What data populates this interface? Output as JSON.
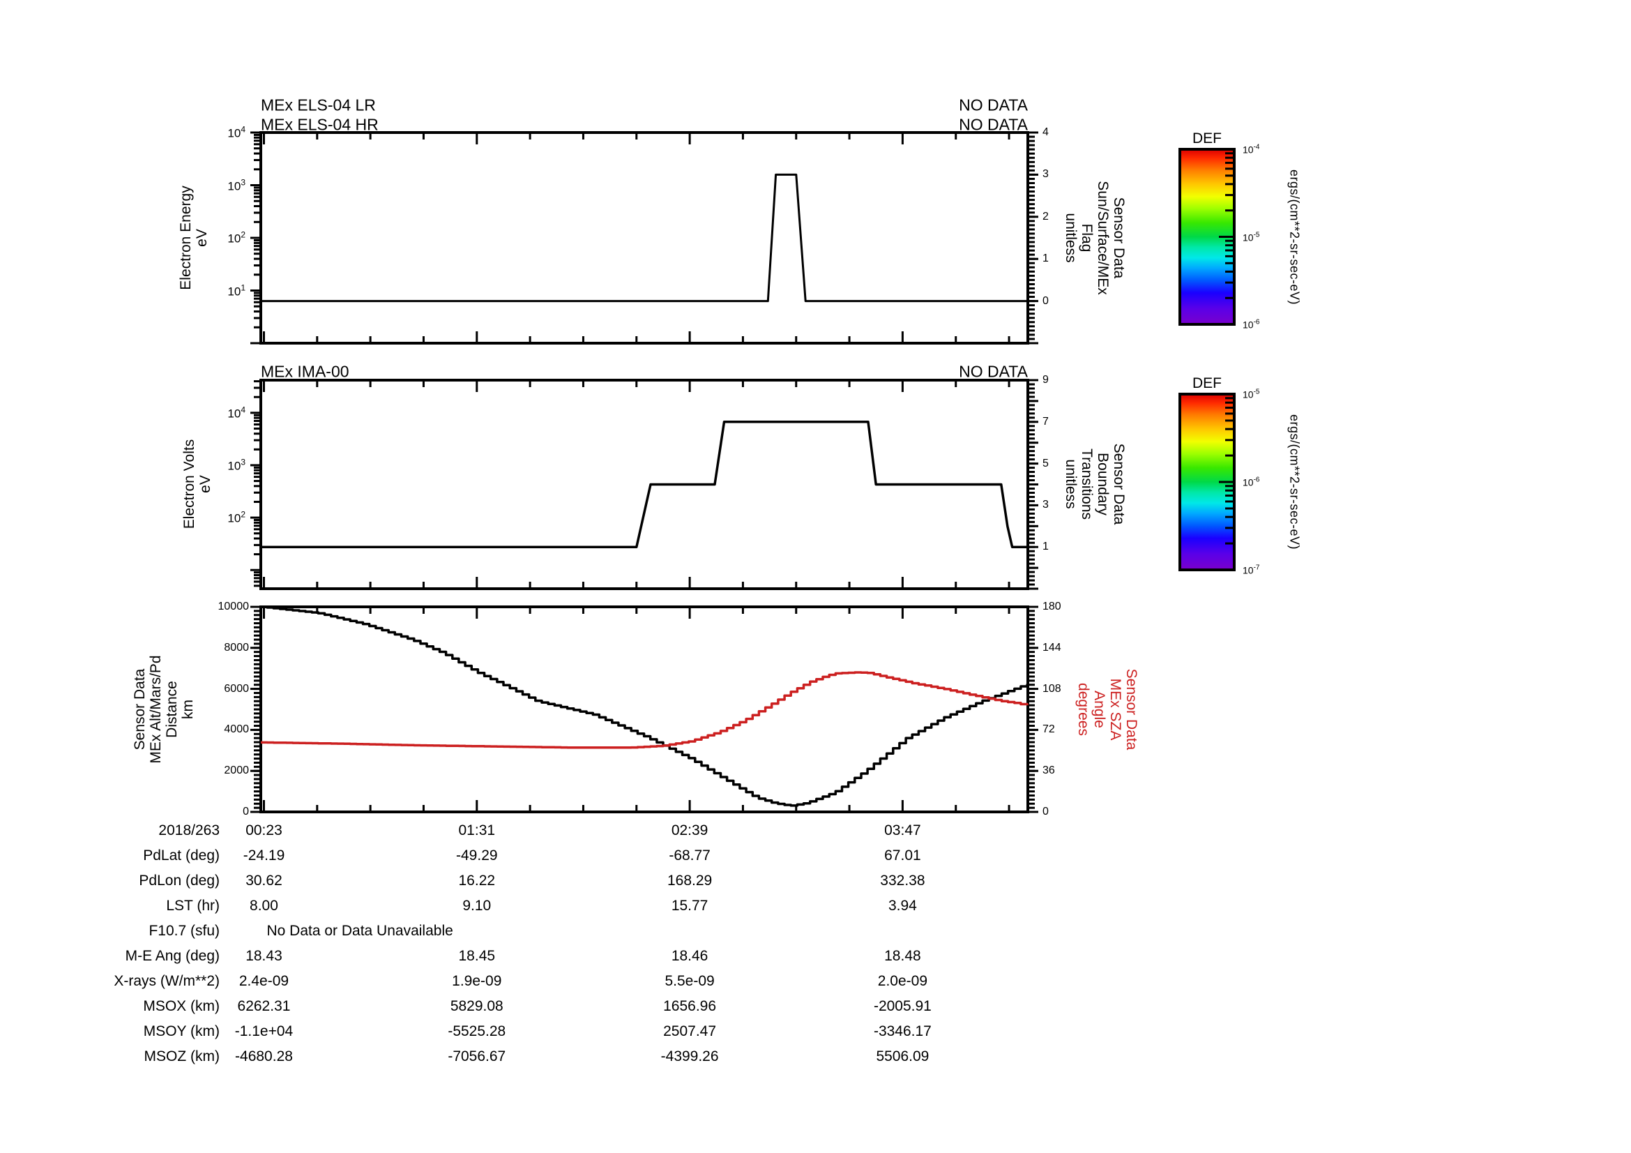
{
  "colors": {
    "background": "#ffffff",
    "axes": "#000000",
    "series_black": "#000000",
    "series_red": "#cc2020"
  },
  "chart_data": {
    "type": "line",
    "layout": "three stacked time-series panels with shared time axis, two colorbars, ephemeris table",
    "x_axis": {
      "date": "2018/263",
      "major_tick_labels": [
        "00:23",
        "01:31",
        "02:39",
        "03:47"
      ],
      "major_tick_minutes": [
        23,
        91,
        159,
        227
      ],
      "minor_tick_interval_minutes": 17,
      "range_minutes": [
        22,
        267
      ]
    },
    "panels": [
      {
        "titles": [
          "MEx ELS-04 LR",
          "MEx ELS-04 HR"
        ],
        "no_data": [
          "NO DATA",
          "NO DATA"
        ],
        "y_left": {
          "label_lines": [
            "Electron Energy",
            "eV"
          ],
          "scale": "log",
          "range": [
            1,
            10000
          ],
          "labeled_exponents": [
            1,
            2,
            3,
            4
          ]
        },
        "y_right": {
          "label_lines": [
            "Sensor Data",
            "Sun/Surface/MEx",
            "Flag",
            "unitless"
          ],
          "scale": "linear",
          "range": [
            -1,
            4
          ],
          "labeled_ticks": [
            0,
            1,
            2,
            3,
            4
          ],
          "minor_step": 0.1
        },
        "series": [
          {
            "name": "Sun/Surface/MEx Flag",
            "axis": "right",
            "color": "#000000",
            "style": "polyline",
            "points": [
              [
                22,
                0
              ],
              [
                184,
                0
              ],
              [
                186.5,
                3
              ],
              [
                193,
                3
              ],
              [
                196,
                0
              ],
              [
                267,
                0
              ]
            ]
          }
        ]
      },
      {
        "titles": [
          "MEx IMA-00"
        ],
        "no_data": [
          "NO DATA"
        ],
        "y_left": {
          "label_lines": [
            "Electron Volts",
            "eV"
          ],
          "scale": "log",
          "range": [
            4.4,
            42000
          ],
          "labeled_exponents": [
            2,
            3,
            4
          ]
        },
        "y_right": {
          "label_lines": [
            "Sensor Data",
            "Boundary",
            "Transitions",
            "unitless"
          ],
          "scale": "linear",
          "range": [
            -1,
            9
          ],
          "labeled_ticks": [
            1,
            3,
            5,
            7,
            9
          ],
          "minor_step": 0.2
        },
        "series": [
          {
            "name": "Boundary Transitions",
            "axis": "right",
            "color": "#000000",
            "style": "polyline",
            "points": [
              [
                22,
                1
              ],
              [
                142,
                1
              ],
              [
                146.5,
                4
              ],
              [
                167,
                4
              ],
              [
                170,
                7
              ],
              [
                216,
                7
              ],
              [
                218.5,
                4
              ],
              [
                258.5,
                4
              ],
              [
                260.5,
                2
              ],
              [
                262,
                1
              ],
              [
                267,
                1
              ]
            ]
          }
        ]
      },
      {
        "titles": [],
        "no_data": [],
        "y_left": {
          "label_lines": [
            "Sensor Data",
            "MEx Alt/Mars/Pd",
            "Distance",
            "km"
          ],
          "scale": "linear",
          "range": [
            0,
            10000
          ],
          "labeled_ticks": [
            0,
            2000,
            4000,
            6000,
            8000,
            10000
          ],
          "minor_step": 200
        },
        "y_right": {
          "label_lines": [
            "Sensor Data",
            "MEx SZA",
            "Angle",
            "degrees"
          ],
          "scale": "linear",
          "range": [
            0,
            180
          ],
          "labeled_ticks": [
            0,
            36,
            72,
            108,
            144,
            180
          ],
          "minor_step": 3.6,
          "color": "#cc2020"
        },
        "series": [
          {
            "name": "MEx Alt/Mars/Pd Distance",
            "axis": "left",
            "color": "#000000",
            "style": "staircase",
            "points": [
              [
                22,
                10000
              ],
              [
                40,
                9700
              ],
              [
                55,
                9150
              ],
              [
                70,
                8400
              ],
              [
                80,
                7750
              ],
              [
                91,
                6800
              ],
              [
                100,
                6150
              ],
              [
                110,
                5400
              ],
              [
                128,
                4750
              ],
              [
                145,
                3650
              ],
              [
                159,
                2600
              ],
              [
                170,
                1600
              ],
              [
                180,
                700
              ],
              [
                186,
                420
              ],
              [
                191,
                300
              ],
              [
                196,
                430
              ],
              [
                205,
                950
              ],
              [
                215,
                2000
              ],
              [
                228,
                3600
              ],
              [
                240,
                4600
              ],
              [
                252,
                5400
              ],
              [
                267,
                6250
              ]
            ]
          },
          {
            "name": "MEx SZA Angle",
            "axis": "right",
            "color": "#cc2020",
            "style": "staircase",
            "points": [
              [
                22,
                61
              ],
              [
                45,
                60
              ],
              [
                70,
                58.5
              ],
              [
                95,
                57.5
              ],
              [
                120,
                56.5
              ],
              [
                140,
                56.5
              ],
              [
                150,
                58
              ],
              [
                159,
                62
              ],
              [
                168,
                70
              ],
              [
                176,
                80
              ],
              [
                184,
                93
              ],
              [
                191,
                105
              ],
              [
                197,
                114
              ],
              [
                202,
                119
              ],
              [
                205,
                121.5
              ],
              [
                212,
                122.5
              ],
              [
                216,
                122
              ],
              [
                222,
                118
              ],
              [
                230,
                113
              ],
              [
                240,
                108
              ],
              [
                250,
                102
              ],
              [
                258,
                97.5
              ],
              [
                263,
                95.5
              ],
              [
                267,
                93.5
              ]
            ]
          }
        ]
      }
    ]
  },
  "colorbars": [
    {
      "title": "DEF",
      "unit": "ergs/(cm**2-sr-sec-eV)",
      "scale": "log",
      "tick_exponents": [
        -4,
        -5,
        -6
      ]
    },
    {
      "title": "DEF",
      "unit": "ergs/(cm**2-sr-sec-eV)",
      "scale": "log",
      "tick_exponents": [
        -5,
        -6,
        -7
      ]
    }
  ],
  "gradient_stops": [
    [
      0,
      "#dd0000"
    ],
    [
      0.05,
      "#ff2a00"
    ],
    [
      0.12,
      "#ff7e00"
    ],
    [
      0.2,
      "#ffc800"
    ],
    [
      0.27,
      "#f2ff00"
    ],
    [
      0.34,
      "#9dff00"
    ],
    [
      0.42,
      "#38e800"
    ],
    [
      0.5,
      "#00d948"
    ],
    [
      0.56,
      "#00e8a8"
    ],
    [
      0.62,
      "#00e8e8"
    ],
    [
      0.68,
      "#00a8ff"
    ],
    [
      0.75,
      "#0058ff"
    ],
    [
      0.82,
      "#1a00ff"
    ],
    [
      0.91,
      "#5a00e8"
    ],
    [
      1,
      "#7a00cc"
    ]
  ],
  "table": {
    "rows": [
      {
        "label": "PdLat (deg)",
        "values": [
          "-24.19",
          "-49.29",
          "-68.77",
          "67.01"
        ]
      },
      {
        "label": "PdLon (deg)",
        "values": [
          "30.62",
          "16.22",
          "168.29",
          "332.38"
        ]
      },
      {
        "label": "LST (hr)",
        "values": [
          "8.00",
          "9.10",
          "15.77",
          "3.94"
        ]
      },
      {
        "label": "F10.7 (sfu)",
        "span_value": "No Data or Data Unavailable"
      },
      {
        "label": "M-E Ang (deg)",
        "values": [
          "18.43",
          "18.45",
          "18.46",
          "18.48"
        ]
      },
      {
        "label": "X-rays (W/m**2)",
        "values": [
          "2.4e-09",
          "1.9e-09",
          "5.5e-09",
          "2.0e-09"
        ]
      },
      {
        "label": "MSOX (km)",
        "values": [
          "6262.31",
          "5829.08",
          "1656.96",
          "-2005.91"
        ]
      },
      {
        "label": "MSOY (km)",
        "values": [
          "-1.1e+04",
          "-5525.28",
          "2507.47",
          "-3346.17"
        ]
      },
      {
        "label": "MSOZ (km)",
        "values": [
          "-4680.28",
          "-7056.67",
          "-4399.26",
          "5506.09"
        ]
      }
    ]
  }
}
